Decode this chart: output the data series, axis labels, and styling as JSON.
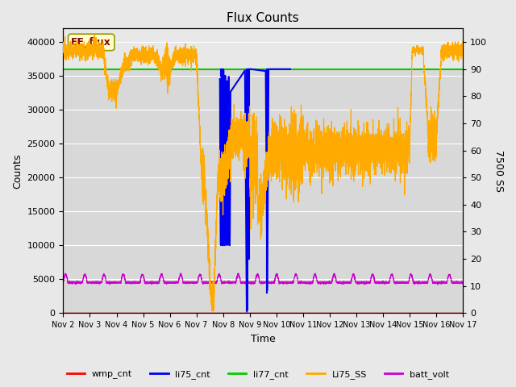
{
  "title": "Flux Counts",
  "xlabel": "Time",
  "ylabel_left": "Counts",
  "ylabel_right": "7500 SS",
  "xlim": [
    0,
    15
  ],
  "ylim_left": [
    0,
    42000
  ],
  "ylim_right": [
    0,
    105
  ],
  "fig_facecolor": "#e8e8e8",
  "ax_facecolor": "#d8d8d8",
  "upper_band_facecolor": "#e8e8e8",
  "xtick_labels": [
    "Nov 2",
    "Nov 3",
    "Nov 4",
    "Nov 5",
    "Nov 6",
    "Nov 7",
    "Nov 8",
    "Nov 9",
    "Nov 10",
    "Nov 11",
    "Nov 12",
    "Nov 13",
    "Nov 14",
    "Nov 15",
    "Nov 16",
    "Nov 17"
  ],
  "annotation_text": "EE_flux",
  "annotation_color": "#8b0000",
  "annotation_bg": "#ffffcc",
  "annotation_edgecolor": "#999900",
  "li77_cnt_y": 36000,
  "li77_cnt_color": "#00cc00",
  "wmp_cnt_color": "#ff0000",
  "li75_cnt_color": "#0000ee",
  "Li75_SS_color": "#ffaa00",
  "batt_volt_color": "#cc00cc",
  "scale_factor": 400,
  "legend_entries": [
    "wmp_cnt",
    "li75_cnt",
    "li77_cnt",
    "Li75_SS",
    "batt_volt"
  ]
}
